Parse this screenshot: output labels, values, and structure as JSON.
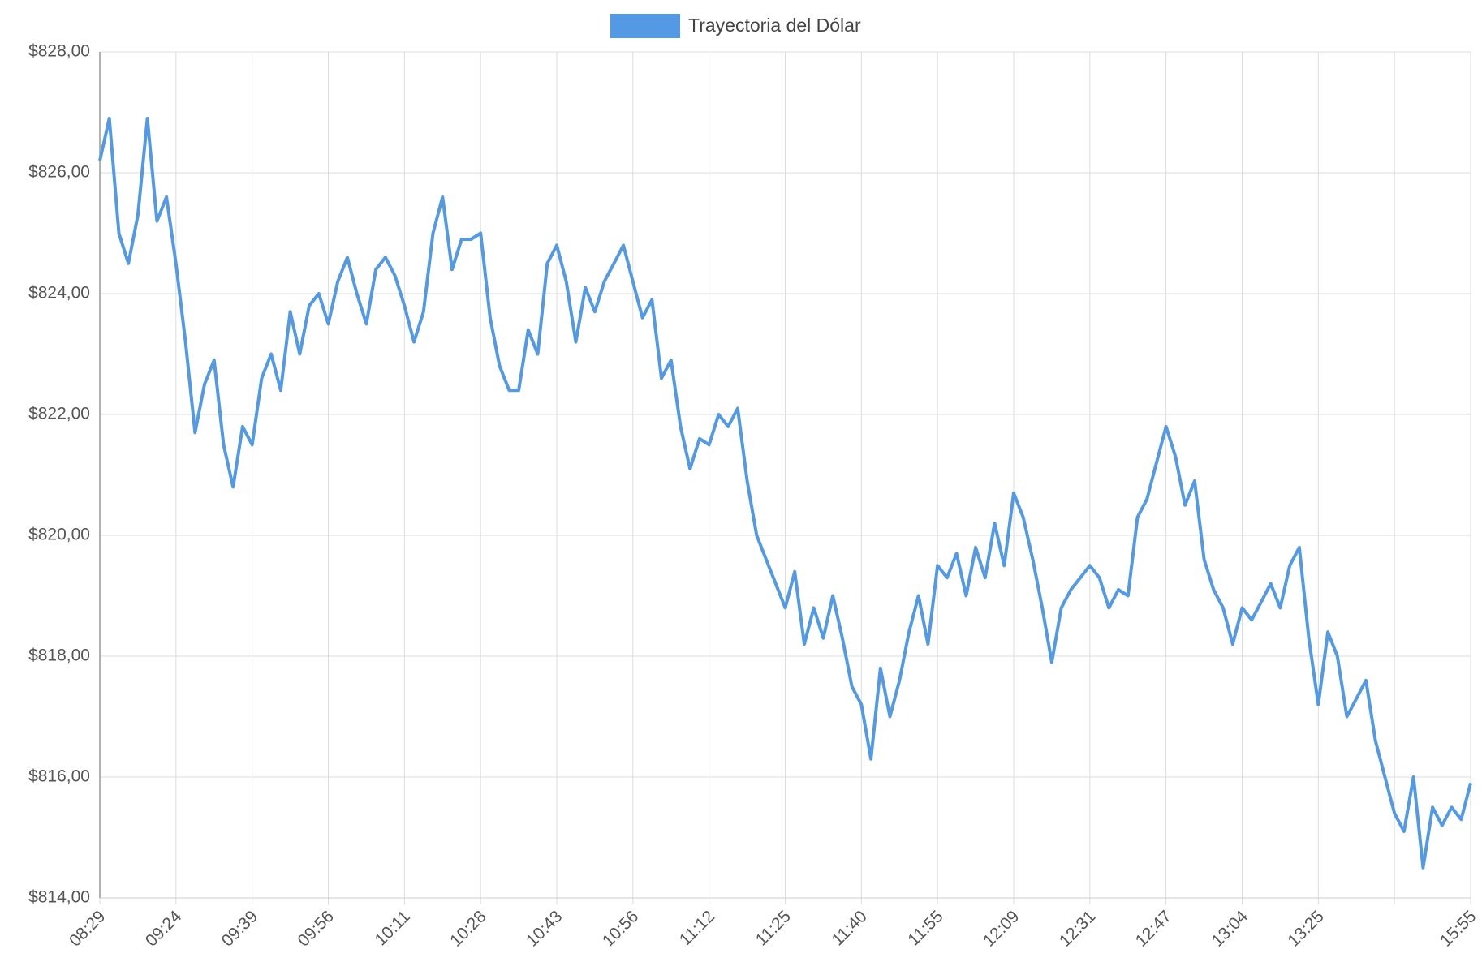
{
  "chart_data": {
    "type": "line",
    "legend": "Trayectoria del Dólar",
    "color": "#5499e3",
    "grid": true,
    "categories": [
      "08:29",
      null,
      null,
      null,
      null,
      null,
      null,
      null,
      "09:24",
      null,
      null,
      null,
      null,
      null,
      null,
      null,
      "09:39",
      null,
      null,
      null,
      null,
      null,
      null,
      null,
      "09:56",
      null,
      null,
      null,
      null,
      null,
      null,
      null,
      "10:11",
      null,
      null,
      null,
      null,
      null,
      null,
      null,
      "10:28",
      null,
      null,
      null,
      null,
      null,
      null,
      null,
      "10:43",
      null,
      null,
      null,
      null,
      null,
      null,
      null,
      "10:56",
      null,
      null,
      null,
      null,
      null,
      null,
      null,
      "11:12",
      null,
      null,
      null,
      null,
      null,
      null,
      null,
      "11:25",
      null,
      null,
      null,
      null,
      null,
      null,
      null,
      "11:40",
      null,
      null,
      null,
      null,
      null,
      null,
      null,
      "11:55",
      null,
      null,
      null,
      null,
      null,
      null,
      null,
      "12:09",
      null,
      null,
      null,
      null,
      null,
      null,
      null,
      "12:31",
      null,
      null,
      null,
      null,
      null,
      null,
      null,
      "12:47",
      null,
      null,
      null,
      null,
      null,
      null,
      null,
      "13:04",
      null,
      null,
      null,
      null,
      null,
      null,
      null,
      "13:25",
      null,
      null,
      null,
      null,
      null,
      null,
      null,
      null,
      null,
      null,
      null,
      null,
      null,
      null,
      null,
      "15:55"
    ],
    "values": [
      826.2,
      826.9,
      825.0,
      824.5,
      825.3,
      826.9,
      825.2,
      825.6,
      824.5,
      823.2,
      821.7,
      822.5,
      822.9,
      821.5,
      820.8,
      821.8,
      821.5,
      822.6,
      823.0,
      822.4,
      823.7,
      823.0,
      823.8,
      824.0,
      823.5,
      824.2,
      824.6,
      824.0,
      823.5,
      824.4,
      824.6,
      824.3,
      823.8,
      823.2,
      823.7,
      825.0,
      825.6,
      824.4,
      824.9,
      824.9,
      825.0,
      823.6,
      822.8,
      822.4,
      822.4,
      823.4,
      823.0,
      824.5,
      824.8,
      824.2,
      823.2,
      824.1,
      823.7,
      824.2,
      824.5,
      824.8,
      824.2,
      823.6,
      823.9,
      822.6,
      822.9,
      821.8,
      821.1,
      821.6,
      821.5,
      822.0,
      821.8,
      822.1,
      820.9,
      820.0,
      819.6,
      819.2,
      818.8,
      819.4,
      818.2,
      818.8,
      818.3,
      819.0,
      818.3,
      817.5,
      817.2,
      816.3,
      817.8,
      817.0,
      817.6,
      818.4,
      819.0,
      818.2,
      819.5,
      819.3,
      819.7,
      819.0,
      819.8,
      819.3,
      820.2,
      819.5,
      820.7,
      820.3,
      819.6,
      818.8,
      817.9,
      818.8,
      819.1,
      819.3,
      819.5,
      819.3,
      818.8,
      819.1,
      819.0,
      820.3,
      820.6,
      821.2,
      821.8,
      821.3,
      820.5,
      820.9,
      819.6,
      819.1,
      818.8,
      818.2,
      818.8,
      818.6,
      818.9,
      819.2,
      818.8,
      819.5,
      819.8,
      818.3,
      817.2,
      818.4,
      818.0,
      817.0,
      817.3,
      817.6,
      816.6,
      816.0,
      815.4,
      815.1,
      816.0,
      814.5,
      815.5,
      815.2,
      815.5,
      815.3,
      815.9
    ],
    "ylim": [
      814,
      828
    ],
    "yticks": [
      {
        "value": 814,
        "label": "$814,00"
      },
      {
        "value": 816,
        "label": "$816,00"
      },
      {
        "value": 818,
        "label": "$818,00"
      },
      {
        "value": 820,
        "label": "$820,00"
      },
      {
        "value": 822,
        "label": "$822,00"
      },
      {
        "value": 824,
        "label": "$824,00"
      },
      {
        "value": 826,
        "label": "$826,00"
      },
      {
        "value": 828,
        "label": "$828,00"
      }
    ]
  }
}
